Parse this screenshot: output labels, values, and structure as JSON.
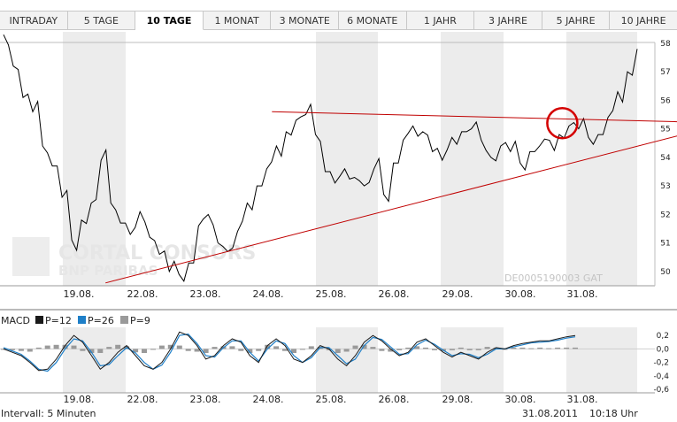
{
  "tabs": [
    {
      "label": "INTRADAY",
      "active": false
    },
    {
      "label": "5 TAGE",
      "active": false
    },
    {
      "label": "10 TAGE",
      "active": true
    },
    {
      "label": "1 MONAT",
      "active": false
    },
    {
      "label": "3 MONATE",
      "active": false
    },
    {
      "label": "6 MONATE",
      "active": false
    },
    {
      "label": "1 JAHR",
      "active": false
    },
    {
      "label": "3 JAHRE",
      "active": false
    },
    {
      "label": "5 JAHRE",
      "active": false
    },
    {
      "label": "10 JAHRE",
      "active": false
    }
  ],
  "watermark": {
    "line1": "CORTAL CONSORS",
    "line2": "BNP PARIBAS"
  },
  "isin": "DE0005190003 GAT",
  "footer": {
    "interval": "Intervall: 5 Minuten",
    "date": "31.08.2011",
    "time": "10:18 Uhr"
  },
  "colors": {
    "price": "#000000",
    "trendline": "#c00000",
    "macd": "#1a1a1a",
    "signal": "#1e7fc8",
    "histogram": "#9a9a9a",
    "shade": "#ececec"
  },
  "chart_data": [
    {
      "type": "line",
      "name": "price",
      "x_labels": [
        "19.08.",
        "22.08.",
        "23.08.",
        "24.08.",
        "25.08.",
        "26.08.",
        "29.08.",
        "30.08.",
        "31.08."
      ],
      "y_ticks": [
        50,
        51,
        52,
        53,
        54,
        55,
        56,
        57,
        58
      ],
      "ylim": [
        49.5,
        58.4
      ],
      "grid": false,
      "series": [
        {
          "values": [
            58.3,
            57.2,
            56.1,
            55.6,
            54.4,
            53.7,
            52.6,
            51.1,
            51.8,
            52.4,
            53.9,
            52.4,
            51.7,
            51.3,
            52.1,
            51.2,
            50.6,
            50.0,
            49.9,
            50.3,
            51.6,
            52.0,
            51.0,
            50.7,
            51.4,
            52.4,
            53.0,
            53.6,
            54.4,
            54.9,
            55.3,
            55.5,
            54.8,
            53.5,
            53.1,
            53.6,
            53.3,
            53.0,
            53.6,
            52.7,
            53.8,
            54.6,
            55.1,
            54.9,
            54.2,
            53.9,
            54.7,
            54.9,
            55.0,
            54.6,
            54.0,
            54.4,
            54.2,
            53.8,
            54.2,
            54.4,
            54.6,
            54.8,
            55.1,
            55.0,
            54.7,
            54.8,
            55.4,
            56.3,
            57.0,
            57.8
          ]
        }
      ],
      "annotations": [
        "descending trendline",
        "ascending trendline",
        "circle marker"
      ],
      "trendlines": [
        {
          "from": {
            "x": 0.428,
            "y": 55.6
          },
          "to": {
            "x": 1.0,
            "y": 55.25
          }
        },
        {
          "from": {
            "x": 0.166,
            "y": 49.6
          },
          "to": {
            "x": 1.0,
            "y": 54.75
          }
        }
      ],
      "marker": {
        "x": 0.885,
        "y": 55.2
      }
    },
    {
      "type": "line",
      "name": "MACD",
      "legend": [
        {
          "label": "P=12",
          "color": "#1a1a1a"
        },
        {
          "label": "P=26",
          "color": "#1e7fc8"
        },
        {
          "label": "P=9",
          "color": "#9a9a9a"
        }
      ],
      "title": "MACD",
      "y_ticks": [
        "0,2",
        "0,0",
        "-0,2",
        "-0,4",
        "-0,6"
      ],
      "y_tick_values": [
        0.2,
        0.0,
        -0.2,
        -0.4,
        -0.6
      ],
      "ylim": [
        -0.65,
        0.32
      ],
      "x_labels": [
        "19.08.",
        "22.08.",
        "23.08.",
        "24.08.",
        "25.08.",
        "26.08.",
        "29.08.",
        "30.08.",
        "31.08."
      ],
      "series": [
        {
          "name": "P=12",
          "values": [
            0.0,
            -0.05,
            -0.1,
            -0.2,
            -0.32,
            -0.3,
            -0.15,
            0.05,
            0.2,
            0.1,
            -0.1,
            -0.3,
            -0.2,
            -0.05,
            0.05,
            -0.1,
            -0.25,
            -0.3,
            -0.2,
            0.0,
            0.25,
            0.2,
            0.05,
            -0.15,
            -0.1,
            0.05,
            0.15,
            0.1,
            -0.1,
            -0.2,
            0.05,
            0.15,
            0.05,
            -0.15,
            -0.2,
            -0.1,
            0.05,
            0.0,
            -0.15,
            -0.25,
            -0.1,
            0.1,
            0.2,
            0.12,
            0.0,
            -0.1,
            -0.05,
            0.1,
            0.15,
            0.05,
            -0.05,
            -0.12,
            -0.05,
            -0.1,
            -0.15,
            -0.05,
            0.02,
            0.0,
            0.05,
            0.08,
            0.1,
            0.12,
            0.12,
            0.15,
            0.18,
            0.2
          ]
        },
        {
          "name": "P=26",
          "values": [
            0.02,
            -0.03,
            -0.08,
            -0.18,
            -0.3,
            -0.33,
            -0.2,
            0.0,
            0.15,
            0.12,
            -0.05,
            -0.25,
            -0.23,
            -0.1,
            0.02,
            -0.06,
            -0.2,
            -0.3,
            -0.24,
            -0.05,
            0.2,
            0.22,
            0.08,
            -0.1,
            -0.12,
            0.02,
            0.12,
            0.12,
            -0.05,
            -0.18,
            0.0,
            0.12,
            0.08,
            -0.1,
            -0.2,
            -0.13,
            0.02,
            0.02,
            -0.1,
            -0.22,
            -0.15,
            0.05,
            0.17,
            0.14,
            0.03,
            -0.08,
            -0.07,
            0.06,
            0.13,
            0.07,
            -0.02,
            -0.1,
            -0.07,
            -0.08,
            -0.13,
            -0.08,
            0.0,
            0.0,
            0.03,
            0.06,
            0.09,
            0.1,
            0.11,
            0.13,
            0.16,
            0.18
          ]
        },
        {
          "name": "P=9",
          "values": [
            0.0,
            -0.02,
            -0.03,
            -0.04,
            0.02,
            0.05,
            0.06,
            0.06,
            0.05,
            -0.03,
            -0.06,
            -0.06,
            0.03,
            0.06,
            0.04,
            -0.05,
            -0.06,
            0.0,
            0.05,
            0.06,
            0.05,
            -0.03,
            -0.04,
            -0.06,
            0.03,
            0.04,
            0.04,
            -0.03,
            -0.06,
            -0.03,
            0.06,
            0.04,
            -0.03,
            -0.06,
            0.0,
            0.04,
            0.03,
            -0.02,
            -0.06,
            -0.04,
            0.05,
            0.06,
            0.03,
            -0.03,
            -0.04,
            -0.02,
            0.02,
            0.04,
            0.02,
            -0.02,
            -0.03,
            -0.02,
            0.02,
            -0.02,
            -0.02,
            0.03,
            0.02,
            0.0,
            0.02,
            0.02,
            0.01,
            0.02,
            0.01,
            0.02,
            0.02,
            0.02
          ]
        }
      ]
    }
  ]
}
